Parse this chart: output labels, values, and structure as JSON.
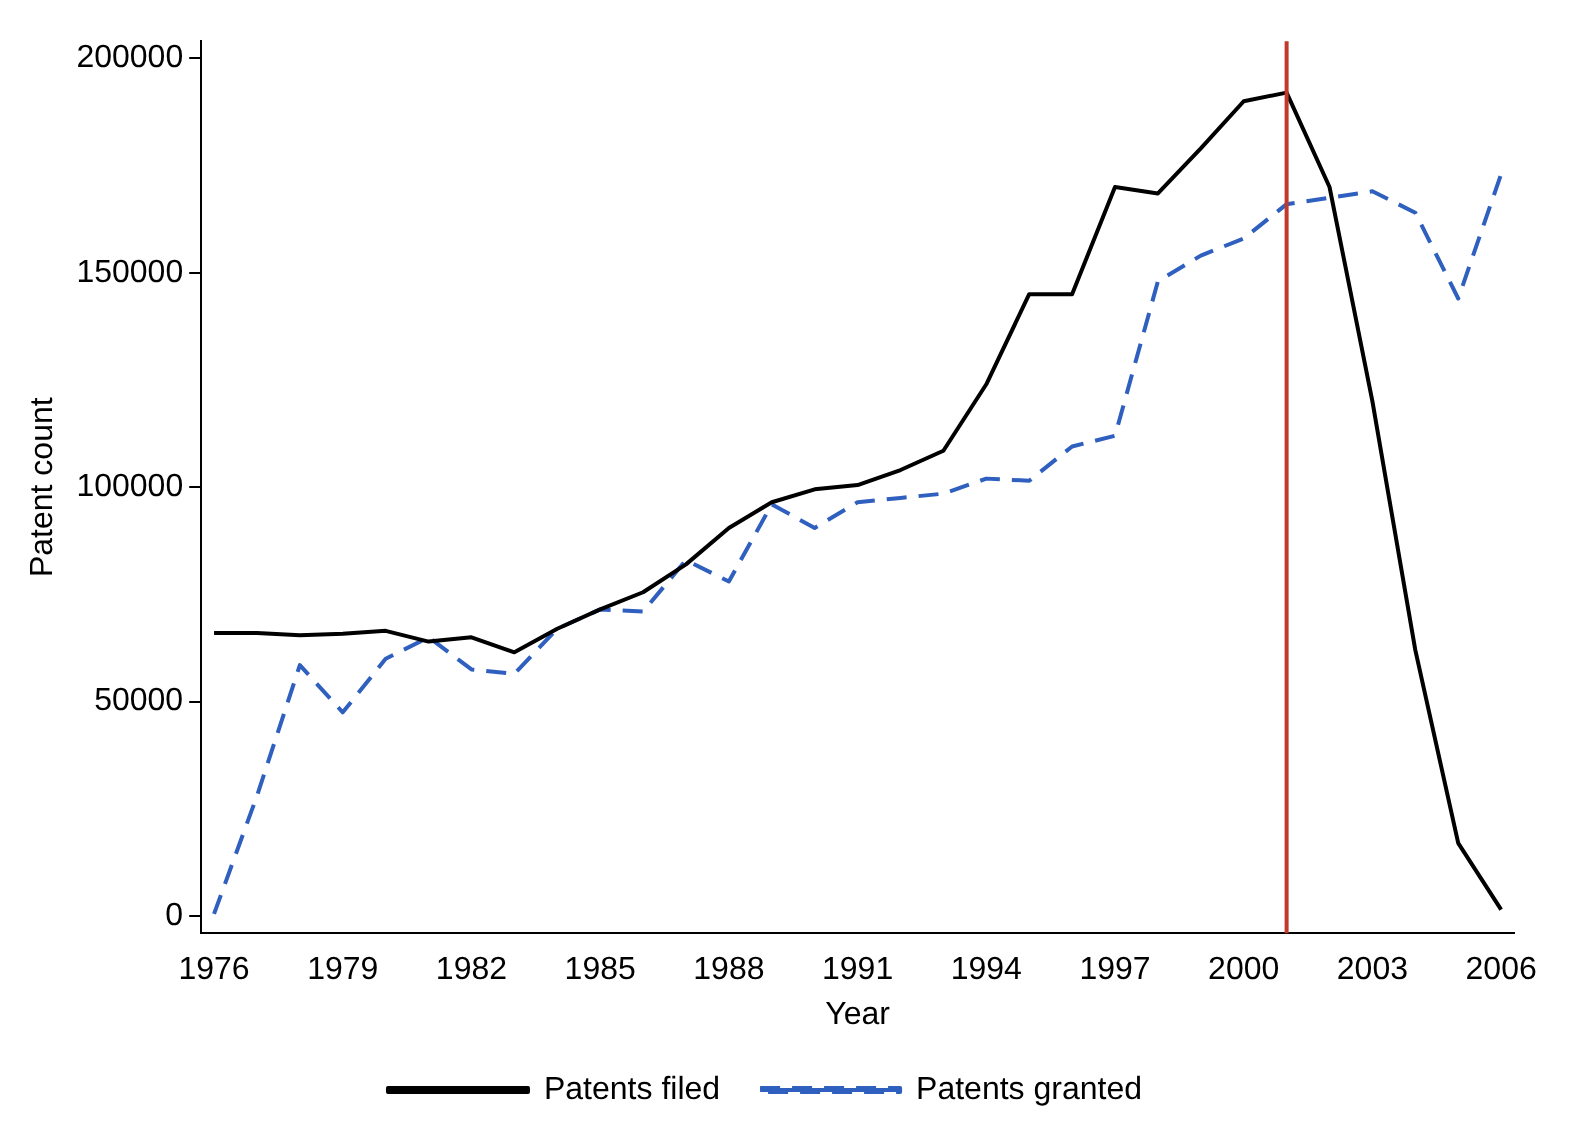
{
  "chart_data": {
    "type": "line",
    "xlabel": "Year",
    "ylabel": "Patent count",
    "x": [
      1976,
      1977,
      1978,
      1979,
      1980,
      1981,
      1982,
      1983,
      1984,
      1985,
      1986,
      1987,
      1988,
      1989,
      1990,
      1991,
      1992,
      1993,
      1994,
      1995,
      1996,
      1997,
      1998,
      1999,
      2000,
      2001,
      2002,
      2003,
      2004,
      2005,
      2006
    ],
    "series": [
      {
        "name": "Patents filed",
        "color": "#000000",
        "line_style": "solid",
        "values": [
          66000,
          66000,
          65500,
          65800,
          66500,
          64000,
          65000,
          61500,
          67000,
          71500,
          75500,
          82000,
          90500,
          96500,
          99500,
          100500,
          104000,
          108500,
          124000,
          145000,
          145000,
          170000,
          168500,
          179000,
          190000,
          192000,
          170000,
          120000,
          62000,
          17000,
          1500
        ]
      },
      {
        "name": "Patents granted",
        "color": "#2f5fbf",
        "line_style": "dashed",
        "values": [
          500,
          28000,
          58500,
          47500,
          60000,
          65000,
          57500,
          56500,
          67000,
          71500,
          71000,
          83000,
          78000,
          96000,
          90500,
          96500,
          97500,
          98500,
          102000,
          101500,
          109500,
          112000,
          148000,
          154000,
          158000,
          166000,
          167500,
          169000,
          164000,
          144000,
          173000
        ]
      }
    ],
    "xlim": [
      1975.7,
      2006.3
    ],
    "xticks": [
      1976,
      1979,
      1982,
      1985,
      1988,
      1991,
      1994,
      1997,
      2000,
      2003,
      2006
    ],
    "ylim": [
      -4000,
      204000
    ],
    "yticks": [
      0,
      50000,
      100000,
      150000,
      200000
    ],
    "ref_lines": [
      {
        "axis": "x",
        "value": 2001,
        "color": "#c0392b"
      }
    ],
    "grid": false,
    "legend": "bottom",
    "marker": "none"
  }
}
